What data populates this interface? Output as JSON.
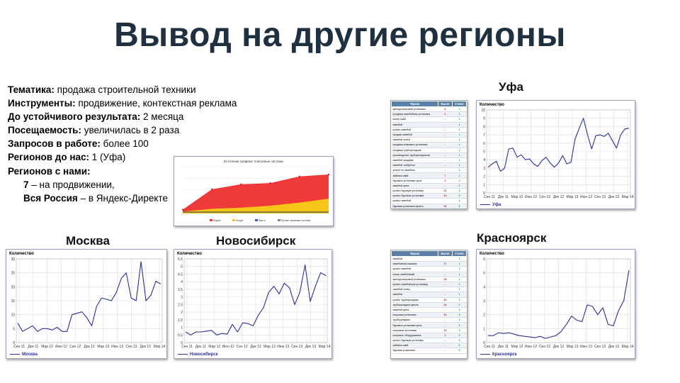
{
  "title": "Вывод на другие регионы",
  "info": {
    "topic_label": "Тематика:",
    "topic_value": " продажа строительной техники",
    "tools_label": "Инструменты:",
    "tools_value": " продвижение, контекстная реклама",
    "result_label": "До устойчивого результата:",
    "result_value": " 2 месяца",
    "traffic_label": "Посещаемость:",
    "traffic_value": " увеличилась в 2 раза",
    "queries_label": "Запросов в работе:",
    "queries_value": " более 100",
    "before_label": "Регионов до нас:",
    "before_value": " 1 (Уфа)",
    "with_label": "Регионов с нами:",
    "with_1_num": "7",
    "with_1_text": " – на продвижении,",
    "with_2_bold": "Вся Россия",
    "with_2_text": " – в Яндекс-Директе"
  },
  "cities": {
    "ufa": "Уфа",
    "moscow": "Москва",
    "novosibirsk": "Новосибирск",
    "krasnoyarsk": "Красноярск"
  },
  "panel_labels": {
    "y_title": "Количество"
  },
  "colors": {
    "line": "#2a2f9a",
    "grid": "#d9dde3",
    "red_area": "#f03a3a",
    "yellow_area": "#f5c518",
    "title": "#1f3040"
  },
  "table_header": {
    "phrase": "Фраза",
    "was": "Было",
    "became": "Стало"
  },
  "ufa_table": [
    [
      "аренда копровой установки",
      "6",
      "1"
    ],
    [
      "продажа сваебойная установка",
      "1",
      "1"
    ],
    [
      "копер свай",
      "-",
      "1"
    ],
    [
      "сваебой",
      "-",
      "1"
    ],
    [
      "купить сваебой",
      "-",
      "1"
    ],
    [
      "продам сваебой",
      "-",
      "1"
    ],
    [
      "сваебой копер",
      "-",
      "1"
    ],
    [
      "продажа копровых установок",
      "-",
      "1"
    ],
    [
      "продажа трубоукладчик",
      "-",
      "1"
    ],
    [
      "производство трубоукладчиков",
      "-",
      "1"
    ],
    [
      "сваебой продажа",
      "-",
      "1"
    ],
    [
      "сваебой требуется",
      "-",
      "1"
    ],
    [
      "услуги по сваебою",
      "-",
      "1"
    ],
    [
      "забивка свай",
      "7",
      "2"
    ],
    [
      "буровые установки цена",
      "6",
      "2"
    ],
    [
      "сваебой цена",
      "-",
      "2"
    ],
    [
      "купить буровую установку",
      "31",
      "3"
    ],
    [
      "купить буровые установки",
      "24",
      "3"
    ],
    [
      "купить сваебой",
      "-",
      "4"
    ],
    [
      "буровая установка купить",
      "36",
      "5"
    ]
  ],
  "kras_table": [
    [
      "сваебой",
      "-",
      "1"
    ],
    [
      "сваебойная машина",
      "17",
      "1"
    ],
    [
      "купить сваебой",
      "-",
      "1"
    ],
    [
      "копер сваебойный",
      "-",
      "1"
    ],
    [
      "аренда копровой установки",
      "28",
      "1"
    ],
    [
      "купить сваебойную установку",
      "-",
      "1"
    ],
    [
      "сваебой копер",
      "-",
      "1"
    ],
    [
      "сваебои",
      "-",
      "1"
    ],
    [
      "купить трубоукладчик",
      "34",
      "1"
    ],
    [
      "трубоукладчик купить",
      "44",
      "2"
    ],
    [
      "сваебой цена",
      "-",
      "2"
    ],
    [
      "копровая установка",
      "33",
      "3"
    ],
    [
      "трубоукладчик",
      "-",
      "3"
    ],
    [
      "буровые установки цена",
      "-",
      "3"
    ],
    [
      "копровые установки",
      "13",
      "3"
    ],
    [
      "копровое оборудование",
      "2",
      "3"
    ],
    [
      "купить буровую установку",
      "-",
      "5"
    ],
    [
      "забивка свай",
      "-",
      "6"
    ],
    [
      "буровая установка",
      "-",
      "6"
    ]
  ],
  "traffic_chart": {
    "title": "Источники трафика: поисковые системы",
    "legend": [
      "Яндекс",
      "Google",
      "Mail.ru",
      "Прочие поисковые системы"
    ]
  },
  "chart_data": [
    {
      "type": "line",
      "name": "ufa",
      "title": "",
      "ylabel": "Количество",
      "x_ticks": [
        "Сен 11",
        "Дек 11",
        "Мар 12",
        "Июн 12",
        "Сен 12",
        "Дек 12",
        "Мар 13",
        "Июн 13",
        "Сен 13",
        "Дек 13",
        "Мар 14"
      ],
      "ylim": [
        0,
        10
      ],
      "y_ticks": [
        0,
        1,
        2,
        3,
        4,
        5,
        6,
        7,
        8,
        9,
        10
      ],
      "series": [
        {
          "name": "Уфа",
          "values": [
            3.1,
            3.5,
            3.8,
            2.6,
            3.0,
            5.3,
            5.4,
            4.3,
            4.6,
            4.0,
            4.1,
            3.5,
            3.2,
            3.9,
            4.3,
            3.6,
            3.1,
            3.6,
            4.5,
            3.5,
            3.7,
            6.5,
            7.8,
            9.0,
            7.0,
            5.3,
            6.9,
            7.0,
            6.8,
            7.2,
            6.3,
            5.4,
            7.0,
            7.7,
            7.8
          ]
        }
      ]
    },
    {
      "type": "line",
      "name": "moscow",
      "title": "",
      "ylabel": "Количество",
      "x_ticks": [
        "Сен 11",
        "Дек 11",
        "Мар 12",
        "Июн 12",
        "Сен 12",
        "Дек 12",
        "Мар 13",
        "Июн 13",
        "Сен 13",
        "Дек 13",
        "Мар 14"
      ],
      "ylim": [
        0,
        30
      ],
      "y_ticks": [
        0,
        5,
        10,
        15,
        20,
        25,
        30
      ],
      "series": [
        {
          "name": "Москва",
          "values": [
            7,
            4,
            5,
            6,
            4,
            5,
            5,
            4.5,
            5.5,
            4,
            4,
            10,
            10.5,
            11,
            9,
            6,
            13,
            16,
            15.5,
            15,
            18,
            23,
            25,
            16,
            15,
            29,
            15,
            17,
            22,
            21
          ]
        }
      ]
    },
    {
      "type": "line",
      "name": "novosibirsk",
      "title": "",
      "ylabel": "Количество",
      "x_ticks": [
        "Сен 11",
        "Дек 11",
        "Мар 12",
        "Июн 12",
        "Сен 12",
        "Дек 12",
        "Мар 13",
        "Июн 13",
        "Сен 13",
        "Дек 13",
        "Мар 14"
      ],
      "ylim": [
        0,
        5.5
      ],
      "y_ticks": [
        0,
        0.5,
        1,
        1.5,
        2,
        2.5,
        3,
        3.5,
        4,
        4.5,
        5,
        5.5
      ],
      "series": [
        {
          "name": "Новосибирск",
          "values": [
            0.7,
            0.5,
            0.7,
            0.7,
            0.75,
            0.8,
            0.5,
            0.6,
            0.55,
            1.2,
            0.7,
            1.3,
            1.25,
            1.1,
            1.8,
            2.3,
            3.3,
            3.7,
            3.2,
            3.9,
            3.6,
            2.5,
            3.3,
            5.1,
            2.7,
            3.7,
            4.6,
            4.4
          ]
        }
      ]
    },
    {
      "type": "line",
      "name": "krasnoyarsk",
      "title": "",
      "ylabel": "Количество",
      "x_ticks": [
        "Сен 11",
        "Дек 11",
        "Мар 12",
        "Июн 12",
        "Сен 12",
        "Дек 12",
        "Мар 13",
        "Июн 13",
        "Сен 13",
        "Дек 13",
        "Мар 14"
      ],
      "ylim": [
        0,
        6
      ],
      "y_ticks": [
        0,
        1,
        2,
        3,
        4,
        5,
        6
      ],
      "series": [
        {
          "name": "Красноярск",
          "values": [
            0.5,
            0.5,
            0.7,
            0.65,
            0.7,
            0.6,
            0.5,
            0.45,
            0.4,
            0.35,
            0.45,
            0.3,
            0.4,
            0.5,
            0.8,
            1.3,
            1.9,
            1.6,
            1.5,
            2.7,
            2.6,
            2.0,
            2.5,
            1.3,
            1.2,
            2.3,
            3.0,
            5.2
          ]
        }
      ]
    },
    {
      "type": "area",
      "name": "traffic",
      "series": [
        {
          "name": "Яндекс",
          "values": [
            10,
            62,
            75,
            78,
            95,
            100
          ]
        },
        {
          "name": "Google",
          "values": [
            5,
            12,
            15,
            20,
            28,
            38
          ]
        }
      ],
      "ylim": [
        0,
        120
      ]
    }
  ]
}
